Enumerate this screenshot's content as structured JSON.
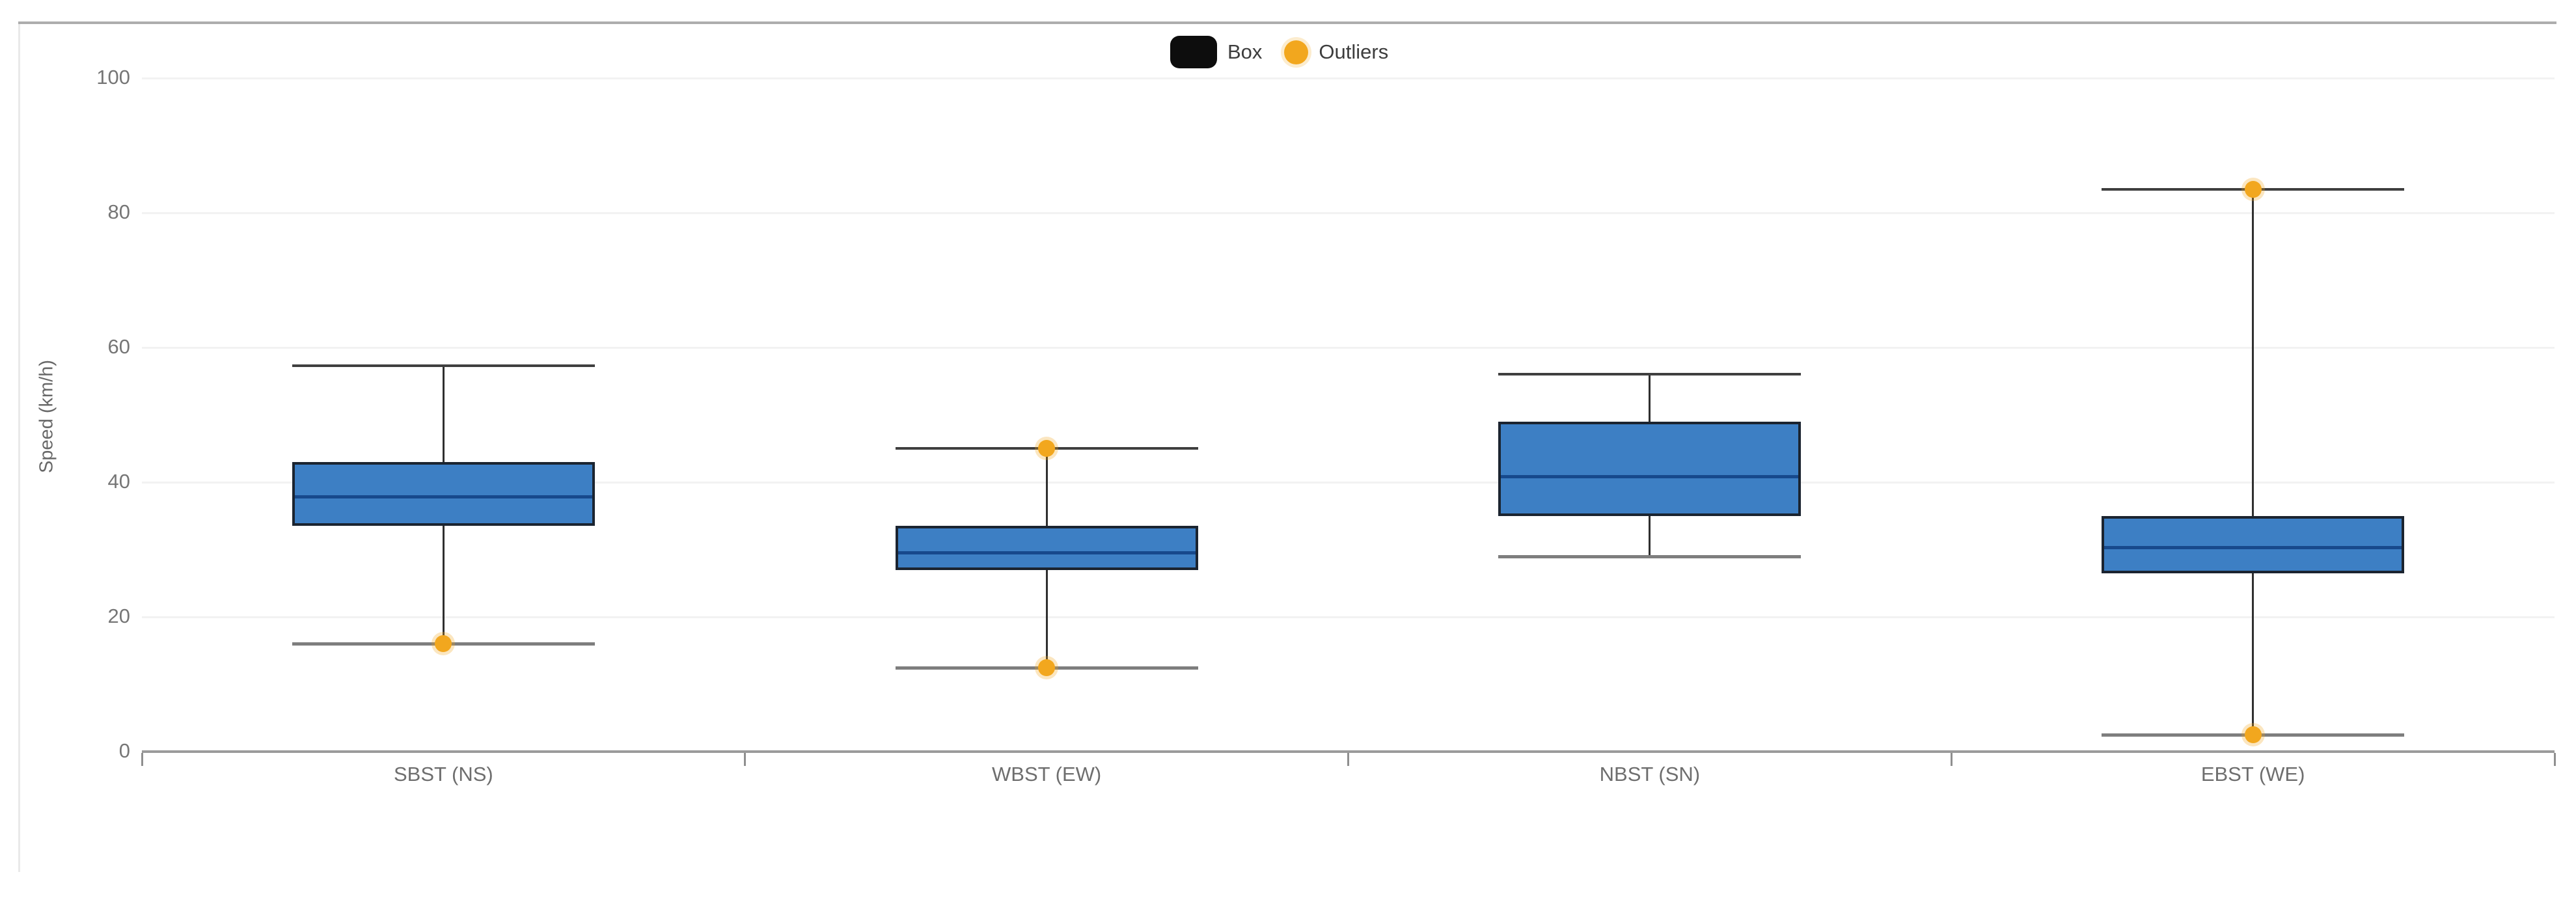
{
  "legend": {
    "box_label": "Box",
    "outliers_label": "Outliers"
  },
  "y_axis": {
    "title": "Speed (km/h)",
    "tick_values": [
      0,
      20,
      40,
      60,
      80,
      100
    ]
  },
  "chart_data": {
    "type": "box",
    "title": "",
    "xlabel": "",
    "ylabel": "Speed (km/h)",
    "ylim": [
      0,
      100
    ],
    "y_tick_step": 20,
    "grid": true,
    "legend_position": "top-center",
    "legend_entries": [
      "Box",
      "Outliers"
    ],
    "categories": [
      "SBST (NS)",
      "WBST (EW)",
      "NBST (SN)",
      "EBST (WE)"
    ],
    "series": [
      {
        "name": "SBST (NS)",
        "min": 16,
        "q1": 33.5,
        "median": 37.8,
        "q3": 43,
        "max": 57.3,
        "outliers": [
          16
        ]
      },
      {
        "name": "WBST (EW)",
        "min": 12.5,
        "q1": 27,
        "median": 29.5,
        "q3": 33.5,
        "max": 45,
        "outliers": [
          45,
          12.5
        ]
      },
      {
        "name": "NBST (SN)",
        "min": 29,
        "q1": 35,
        "median": 40.8,
        "q3": 49,
        "max": 56,
        "outliers": []
      },
      {
        "name": "EBST (WE)",
        "min": 2.5,
        "q1": 26.5,
        "median": 30.3,
        "q3": 35,
        "max": 83.5,
        "outliers": [
          83.5,
          2.5
        ]
      }
    ]
  },
  "colors": {
    "box_fill": "#3d7fc4",
    "box_border": "#1b2430",
    "median": "#17498c",
    "outlier": "#f2a71e",
    "whisker": "#2f2f2f",
    "cap_max": "#3f3f3f",
    "cap_min": "#7e7e7e",
    "gridline": "#f2f2f2",
    "axis_line": "#9b9b9b",
    "panel_border_top": "#adadad",
    "tick_text": "#767676",
    "label_text": "#6e6e6e",
    "legend_text": "#3d3d3d",
    "legend_swatch": "#0d0d0d"
  }
}
